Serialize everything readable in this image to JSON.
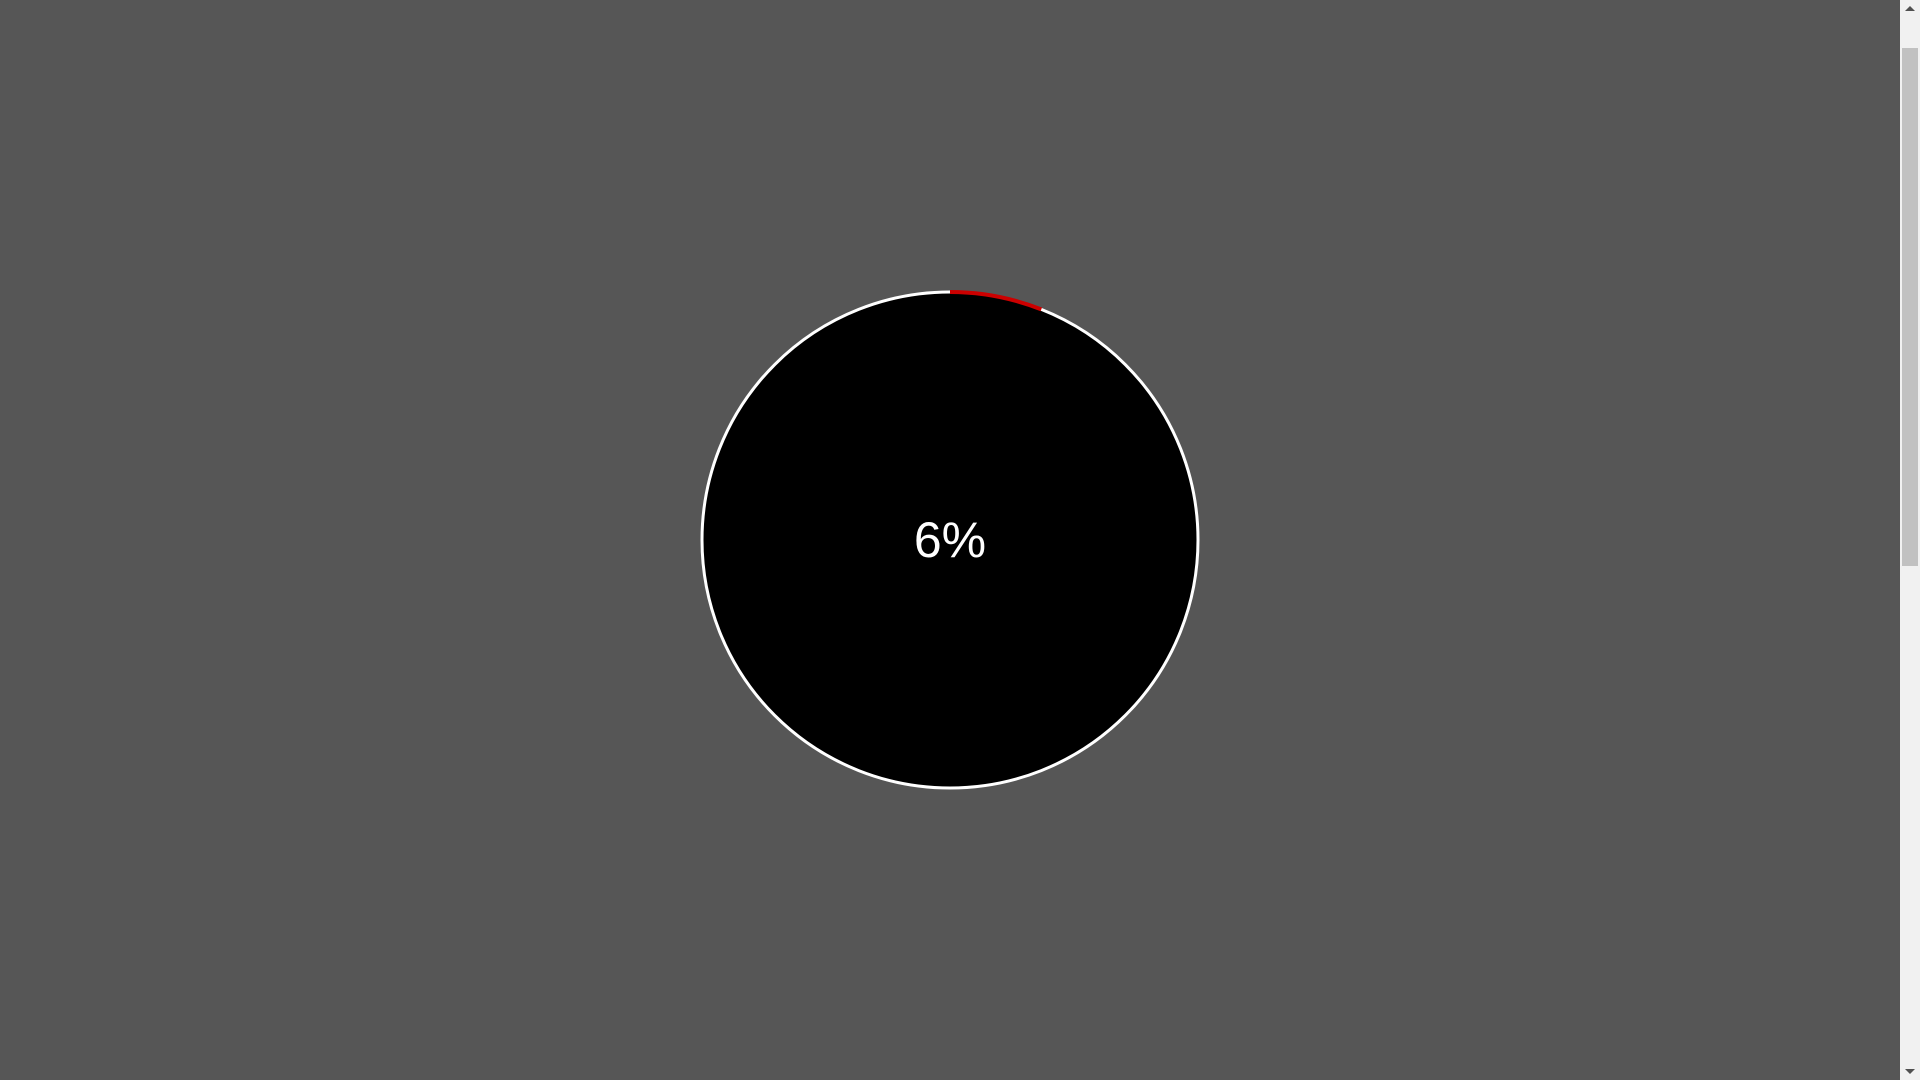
{
  "progress": {
    "label": "6%",
    "value_fraction": 0.06,
    "colors": {
      "page_background": "#565656",
      "circle_fill": "#000000",
      "ring": "#ffffff",
      "progress_arc": "#cc0000",
      "text": "#ffffff"
    }
  },
  "scrollbar": {
    "up_icon": "triangle-up-icon",
    "down_icon": "triangle-down-icon"
  }
}
